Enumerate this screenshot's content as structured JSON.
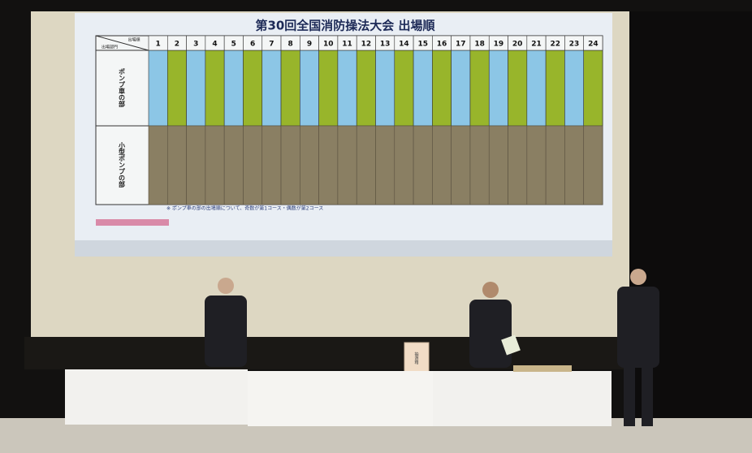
{
  "screen": {
    "title": "第30回全国消防操法大会 出場順",
    "corner_top": "出場順",
    "corner_bottom": "出場部門",
    "columns": [
      "1",
      "2",
      "3",
      "4",
      "5",
      "6",
      "7",
      "8",
      "9",
      "10",
      "11",
      "12",
      "13",
      "14",
      "15",
      "16",
      "17",
      "18",
      "19",
      "20",
      "21",
      "22",
      "23",
      "24"
    ],
    "rows": [
      "ポンプ車の部",
      "小型ポンプの部"
    ],
    "note": "※ ポンプ車の部の出場順について、奇数が第1コース・偶数が第2コース"
  },
  "stage": {
    "box_label": "抽選箱"
  }
}
